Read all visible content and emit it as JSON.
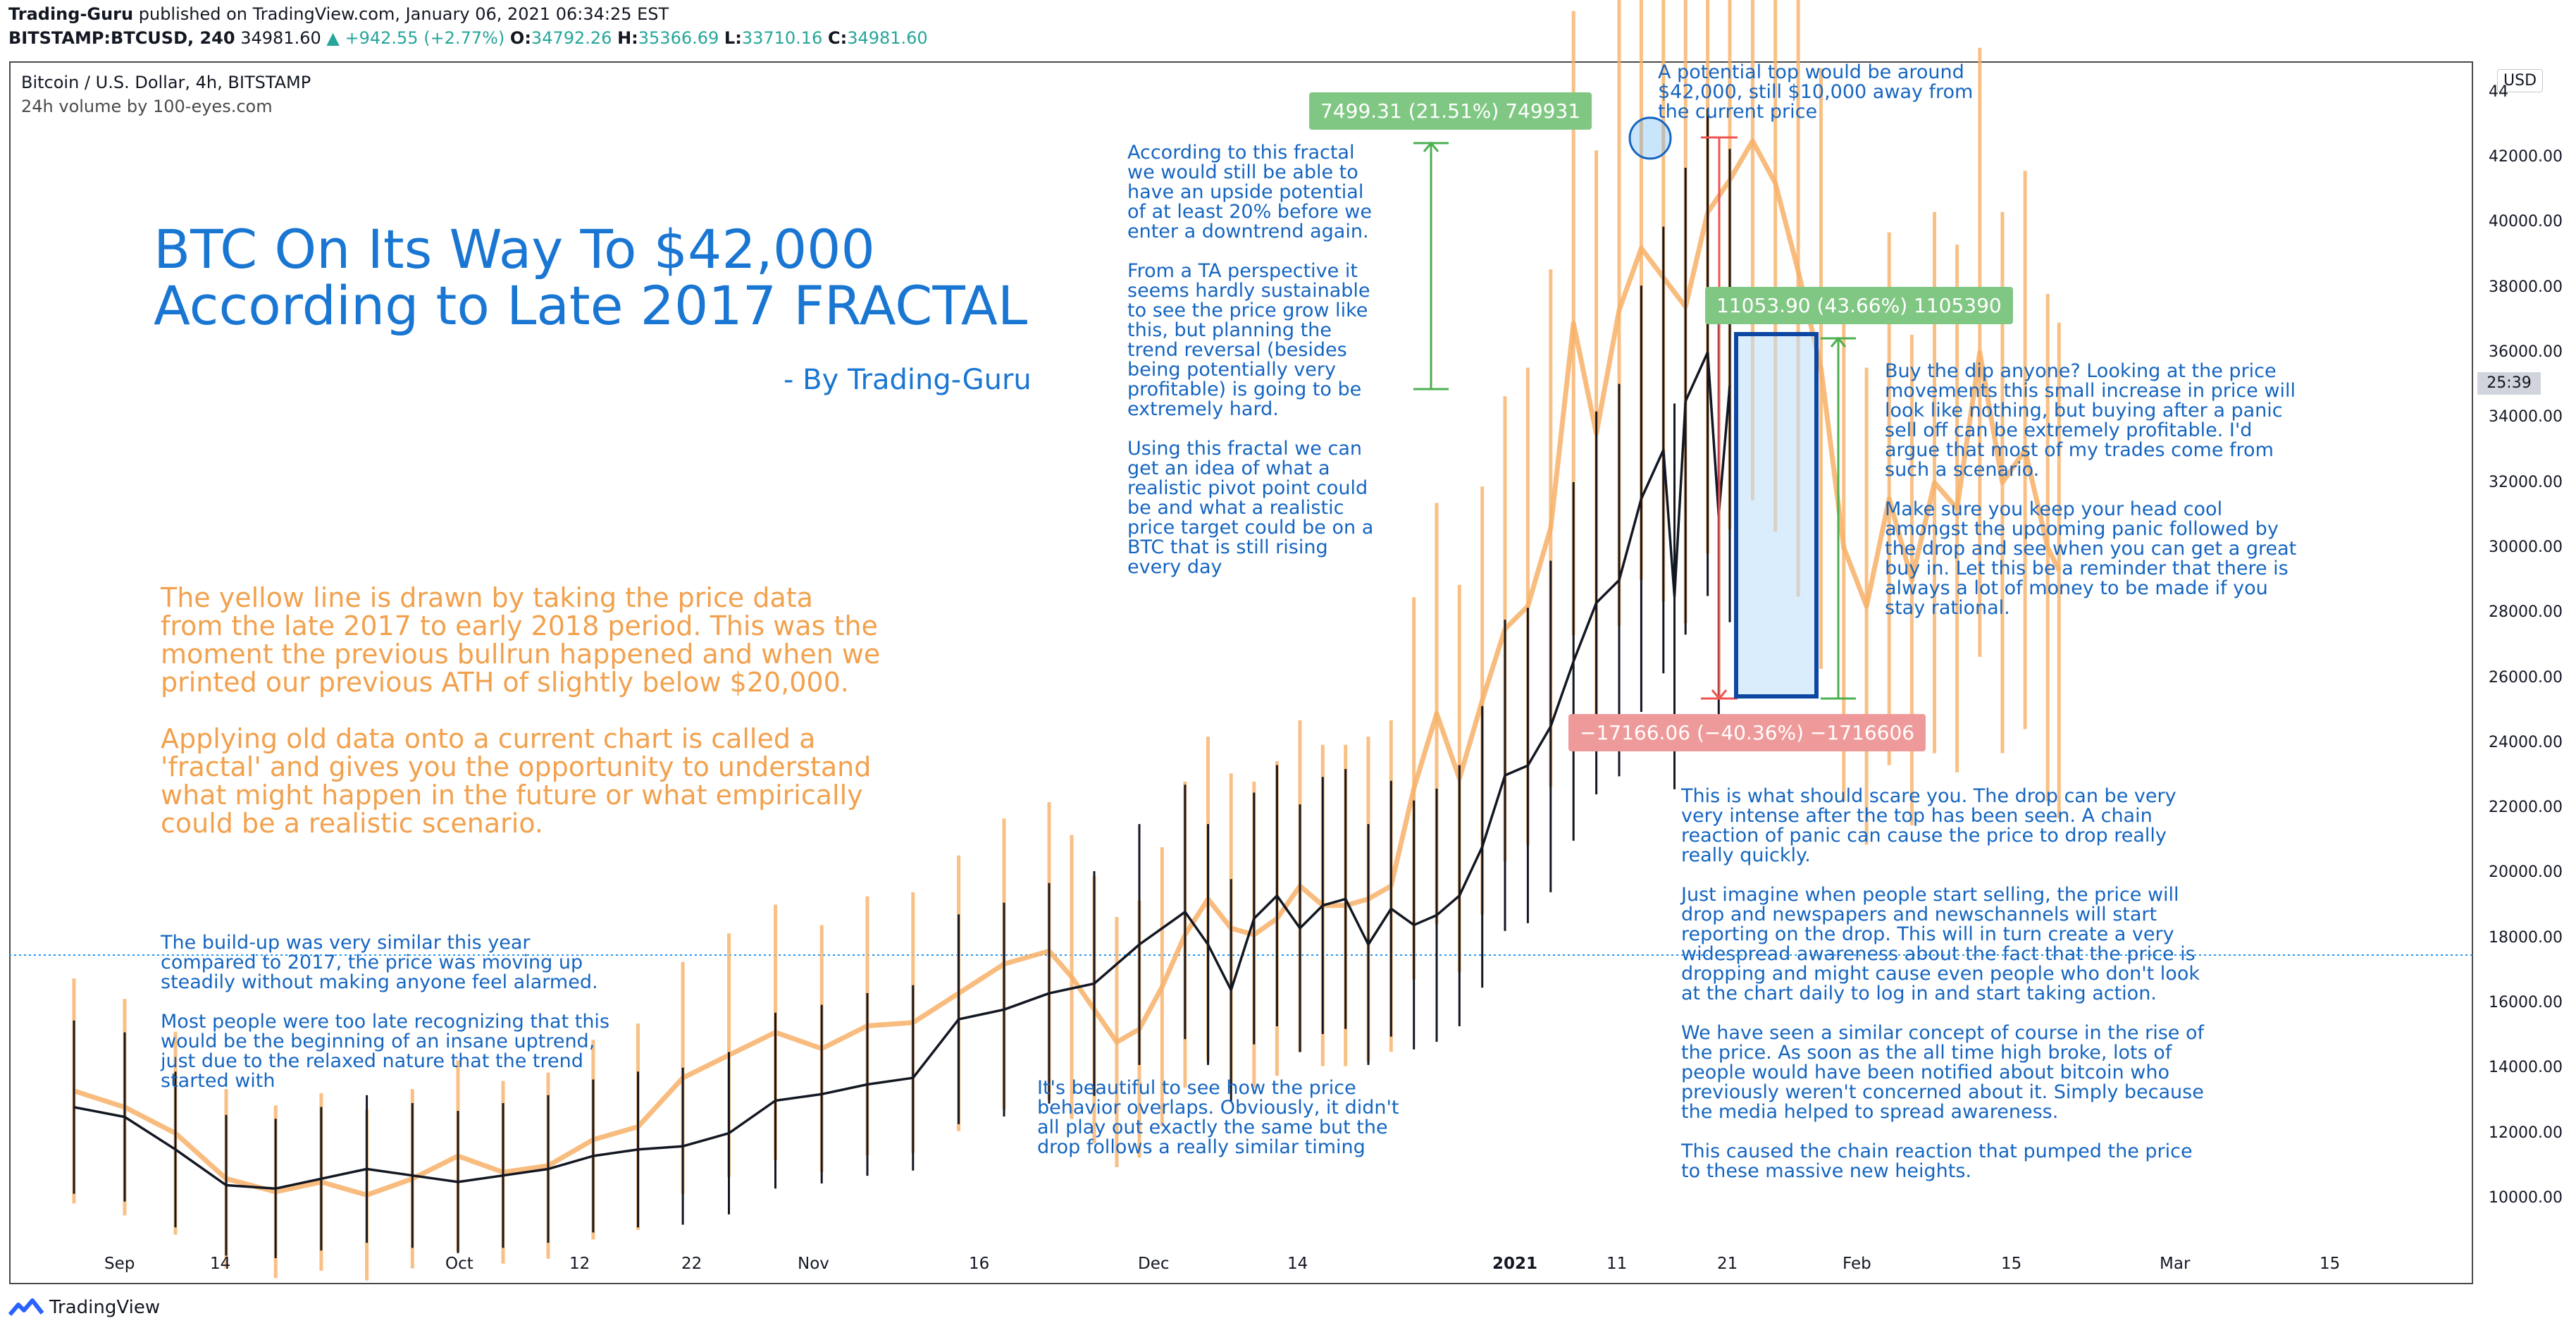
{
  "header": {
    "author": "Trading-Guru",
    "published": "published on TradingView.com, January 06, 2021 06:34:25 EST",
    "symbol": "BITSTAMP:BTCUSD, 240",
    "last": "34981.60",
    "change": "+942.55 (+2.77%)",
    "o_label": "O:",
    "o": "34792.26",
    "h_label": "H:",
    "h": "35366.69",
    "l_label": "L:",
    "l": "33710.16",
    "c_label": "C:",
    "c": "34981.60"
  },
  "chart_header": {
    "symbol_desc": "Bitcoin / U.S. Dollar, 4h, BITSTAMP",
    "volume": "24h volume by 100-eyes.com",
    "currency": "USD",
    "countdown": "25:39"
  },
  "annotations": {
    "title_line1": "BTC On Its Way To $42,000",
    "title_line2": "According to Late 2017 FRACTAL",
    "byline": "- By Trading-Guru",
    "fractal_explain": "The yellow line is drawn by taking the price data\nfrom the late 2017 to early 2018 period. This was the\nmoment the previous bullrun happened and when we\nprinted our previous ATH of slightly below $20,000.\n\nApplying old data onto a current chart is called a\n'fractal' and gives you the opportunity to understand\nwhat might happen in the future or what empirically\ncould be a realistic scenario.",
    "buildup": "The build-up was very similar this year\ncompared to 2017, the price was moving up\nsteadily without making anyone feel alarmed.\n\nMost people were too late recognizing that this\nwould be the beginning of an insane uptrend,\njust due to the relaxed nature that the trend\nstarted with",
    "overlap": "It's beautiful to see how the price\nbehavior overlaps. Obviously, it didn't\nall play out exactly the same but the\ndrop follows a really similar timing",
    "upside": "According to this fractal\nwe would still be able to\nhave an upside potential\nof at least 20% before we\nenter a downtrend again.\n\nFrom a TA perspective it\nseems hardly sustainable\nto see the price grow like\nthis, but planning the\ntrend reversal (besides\nbeing potentially very\nprofitable) is going to be\nextremely hard.\n\nUsing this fractal we can\nget an idea of what a\nrealistic pivot point could\nbe and what a realistic\nprice target could be on a\nBTC that is still rising\nevery day",
    "top": "A potential top would be around\n$42,000, still $10,000 away from\nthe current price",
    "dip": "Buy the dip anyone? Looking at the price\nmovements this small increase in price will\nlook like nothing, but buying after a panic\nsell off can be extremely profitable. I'd\nargue that most of my trades come from\nsuch a scenario.\n\nMake sure you keep your head cool\namongst the upcoming panic followed by\nthe drop and see when you can get a great\nbuy in. Let this be a reminder that there is\nalways a lot of money to be made if you\nstay rational.",
    "scare": "This is what should scare you. The drop can be very\nvery intense after the top has been seen. A chain\nreaction of panic can cause the price to drop really\nreally quickly.\n\nJust imagine when people start selling, the price will\ndrop and newspapers and newschannels will start\nreporting on the drop. This will in turn create a very\nwidespread awareness about the fact that the price is\ndropping and might cause even people who don't look\nat the chart daily to log in and start taking action.\n\nWe have seen a similar concept of course in the rise of\nthe price. As soon as the all time high broke, lots of\npeople would have been notified about bitcoin who\npreviously weren't concerned about it. Simply because\nthe media helped to spread awareness.\n\nThis caused the chain reaction that pumped the price\nto these massive new heights.",
    "badge1": "7499.31 (21.51%) 749931",
    "badge2": "11053.90 (43.66%) 1105390",
    "badge3": "−17166.06 (−40.36%) −1716606"
  },
  "footer": {
    "brand": "TradingView"
  },
  "colors": {
    "price": "#131722",
    "fractal": "#f7b067",
    "annotation": "#1565c0",
    "title": "#1976d2",
    "badge_green": "#81c784",
    "badge_red": "#ef9a9a",
    "range_box": "#bbdefb"
  },
  "chart_data": {
    "type": "line",
    "title": "",
    "xlabel": "",
    "ylabel": "",
    "y_ticks": [
      "10000.00",
      "12000.00",
      "14000.00",
      "16000.00",
      "18000.00",
      "20000.00",
      "22000.00",
      "24000.00",
      "26000.00",
      "28000.00",
      "30000.00",
      "32000.00",
      "34000.00",
      "36000.00",
      "38000.00",
      "40000.00",
      "42000.00"
    ],
    "y_top_partial": "44",
    "x_ticks": [
      "Sep",
      "14",
      "Oct",
      "12",
      "22",
      "Nov",
      "16",
      "Dec",
      "14",
      "2021",
      "11",
      "21",
      "Feb",
      "15",
      "Mar",
      "15"
    ],
    "ylim": [
      9000,
      44500
    ],
    "x_range_days": [
      -3,
      198
    ],
    "grid": false,
    "series": [
      {
        "color": "#131722",
        "points": [
          [
            -2,
            12800
          ],
          [
            2,
            12500
          ],
          [
            6,
            11500
          ],
          [
            10,
            10400
          ],
          [
            14,
            10300
          ],
          [
            18,
            10600
          ],
          [
            22,
            10900
          ],
          [
            26,
            10700
          ],
          [
            30,
            10500
          ],
          [
            34,
            10700
          ],
          [
            38,
            10900
          ],
          [
            42,
            11300
          ],
          [
            46,
            11500
          ],
          [
            50,
            11600
          ],
          [
            54,
            12000
          ],
          [
            58,
            13000
          ],
          [
            62,
            13200
          ],
          [
            66,
            13500
          ],
          [
            70,
            13700
          ],
          [
            74,
            15500
          ],
          [
            78,
            15800
          ],
          [
            82,
            16300
          ],
          [
            86,
            16600
          ],
          [
            90,
            17800
          ],
          [
            94,
            18800
          ],
          [
            96,
            17800
          ],
          [
            98,
            16400
          ],
          [
            100,
            18600
          ],
          [
            102,
            19300
          ],
          [
            104,
            18300
          ],
          [
            106,
            19000
          ],
          [
            108,
            19200
          ],
          [
            110,
            17800
          ],
          [
            112,
            18900
          ],
          [
            114,
            18400
          ],
          [
            116,
            18700
          ],
          [
            118,
            19300
          ],
          [
            120,
            20800
          ],
          [
            122,
            23000
          ],
          [
            124,
            23300
          ],
          [
            126,
            24500
          ],
          [
            128,
            26500
          ],
          [
            130,
            28300
          ],
          [
            132,
            29000
          ],
          [
            134,
            31500
          ],
          [
            136,
            33000
          ],
          [
            137,
            28500
          ],
          [
            138,
            34500
          ],
          [
            140,
            36000
          ],
          [
            141,
            31000
          ],
          [
            142,
            34981
          ]
        ]
      },
      {
        "color": "#f7b067",
        "points": [
          [
            -2,
            13300
          ],
          [
            2,
            12800
          ],
          [
            6,
            12000
          ],
          [
            10,
            10600
          ],
          [
            14,
            10200
          ],
          [
            18,
            10500
          ],
          [
            22,
            10100
          ],
          [
            26,
            10600
          ],
          [
            30,
            11300
          ],
          [
            34,
            10800
          ],
          [
            38,
            11000
          ],
          [
            42,
            11800
          ],
          [
            46,
            12200
          ],
          [
            50,
            13700
          ],
          [
            54,
            14400
          ],
          [
            58,
            15100
          ],
          [
            62,
            14600
          ],
          [
            66,
            15300
          ],
          [
            70,
            15400
          ],
          [
            74,
            16300
          ],
          [
            78,
            17200
          ],
          [
            82,
            17600
          ],
          [
            84,
            16800
          ],
          [
            86,
            15800
          ],
          [
            88,
            14800
          ],
          [
            90,
            15200
          ],
          [
            92,
            16500
          ],
          [
            94,
            18100
          ],
          [
            96,
            19200
          ],
          [
            98,
            18300
          ],
          [
            100,
            18100
          ],
          [
            102,
            18600
          ],
          [
            104,
            19600
          ],
          [
            106,
            19000
          ],
          [
            108,
            19000
          ],
          [
            110,
            19200
          ],
          [
            112,
            19600
          ],
          [
            114,
            22600
          ],
          [
            116,
            24900
          ],
          [
            118,
            22900
          ],
          [
            120,
            25300
          ],
          [
            122,
            27500
          ],
          [
            124,
            28200
          ],
          [
            126,
            30600
          ],
          [
            128,
            36900
          ],
          [
            130,
            33500
          ],
          [
            132,
            37300
          ],
          [
            134,
            39200
          ],
          [
            136,
            38300
          ],
          [
            138,
            37400
          ],
          [
            140,
            40300
          ],
          [
            142,
            41300
          ],
          [
            144,
            42500
          ],
          [
            146,
            41200
          ],
          [
            148,
            38500
          ],
          [
            150,
            35500
          ],
          [
            152,
            30000
          ],
          [
            154,
            28200
          ],
          [
            156,
            31500
          ],
          [
            158,
            29000
          ],
          [
            160,
            32000
          ],
          [
            162,
            31200
          ],
          [
            164,
            36000
          ],
          [
            166,
            32000
          ],
          [
            168,
            33000
          ],
          [
            170,
            30000
          ],
          [
            171,
            29300
          ]
        ]
      }
    ]
  }
}
